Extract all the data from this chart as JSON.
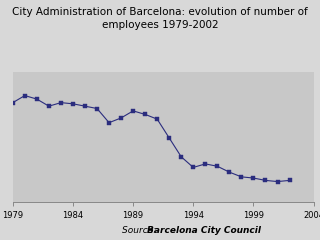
{
  "title": "City Administration of Barcelona: evolution of number of\nemployees 1979-2002",
  "title_fontsize": 7.5,
  "source_label": "Source: ",
  "source_bold": "Barcelona City Council",
  "source_fontsize": 6.5,
  "years": [
    1979,
    1980,
    1981,
    1982,
    1983,
    1984,
    1985,
    1986,
    1987,
    1988,
    1989,
    1990,
    1991,
    1992,
    1993,
    1994,
    1995,
    1996,
    1997,
    1998,
    1999,
    2000,
    2001,
    2002
  ],
  "values": [
    11200,
    11500,
    11350,
    11050,
    11200,
    11150,
    11050,
    10950,
    10350,
    10550,
    10850,
    10700,
    10500,
    9700,
    8900,
    8450,
    8600,
    8500,
    8250,
    8050,
    8000,
    7900,
    7850,
    7900
  ],
  "line_color": "#2B2D7E",
  "marker_color": "#2B2D7E",
  "plot_bg_color": "#C8C8C8",
  "fig_bg_color": "#D8D8D8",
  "xlim": [
    1979,
    2004
  ],
  "xticks": [
    1979,
    1984,
    1989,
    1994,
    1999,
    2004
  ],
  "ylim": [
    7000,
    12500
  ],
  "grid_color": "#B0B0B0",
  "grid_linewidth": 0.5,
  "line_width": 0.8,
  "marker_size": 2.5
}
